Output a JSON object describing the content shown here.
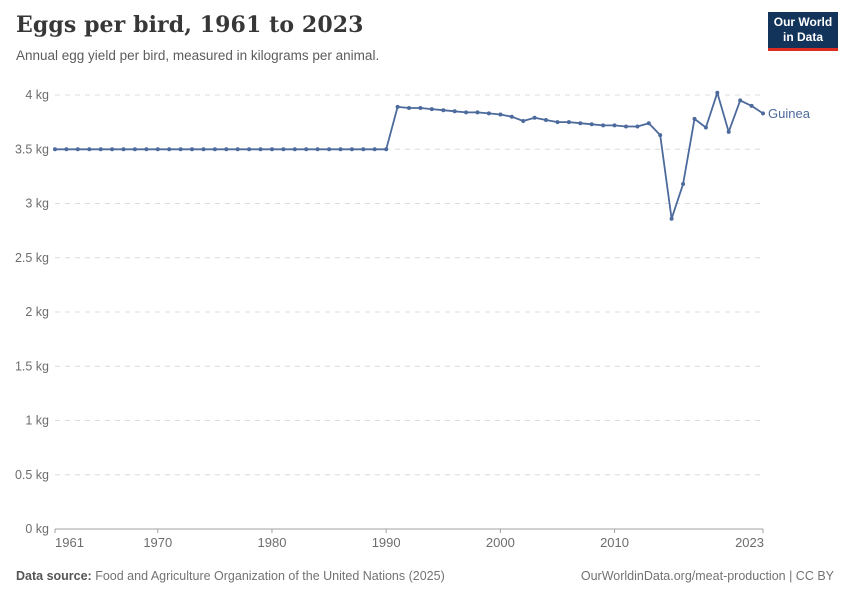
{
  "header": {
    "title": "Eggs per bird, 1961 to 2023",
    "subtitle": "Annual egg yield per bird, measured in kilograms per animal."
  },
  "logo": {
    "line1": "Our World",
    "line2": "in Data",
    "bg_color": "#12335a",
    "accent_color": "#da2d20"
  },
  "chart_data": {
    "type": "line",
    "title": "Eggs per bird, 1961 to 2023",
    "ylabel": "kilograms per animal",
    "unit": "kg",
    "ylim": [
      0,
      4
    ],
    "xlim": [
      1961,
      2023
    ],
    "grid": true,
    "legend_position": "end-of-line",
    "entity_label": "Guinea",
    "line_color": "#4c6a9c",
    "grid_color": "#dcdcdc",
    "axis_color": "#a0a0a0",
    "tick_text_color": "#6d6d6d",
    "yticks": [
      {
        "value": 0,
        "label": "0 kg"
      },
      {
        "value": 0.5,
        "label": "0.5 kg"
      },
      {
        "value": 1,
        "label": "1 kg"
      },
      {
        "value": 1.5,
        "label": "1.5 kg"
      },
      {
        "value": 2,
        "label": "2 kg"
      },
      {
        "value": 2.5,
        "label": "2.5 kg"
      },
      {
        "value": 3,
        "label": "3 kg"
      },
      {
        "value": 3.5,
        "label": "3.5 kg"
      },
      {
        "value": 4,
        "label": "4 kg"
      }
    ],
    "xticks": [
      {
        "year": 1961,
        "label": "1961",
        "align": "start"
      },
      {
        "year": 1970,
        "label": "1970",
        "align": "middle"
      },
      {
        "year": 1980,
        "label": "1980",
        "align": "middle"
      },
      {
        "year": 1990,
        "label": "1990",
        "align": "middle"
      },
      {
        "year": 2000,
        "label": "2000",
        "align": "middle"
      },
      {
        "year": 2010,
        "label": "2010",
        "align": "middle"
      },
      {
        "year": 2023,
        "label": "2023",
        "align": "end"
      }
    ],
    "series": [
      {
        "name": "Guinea",
        "x": [
          1961,
          1962,
          1963,
          1964,
          1965,
          1966,
          1967,
          1968,
          1969,
          1970,
          1971,
          1972,
          1973,
          1974,
          1975,
          1976,
          1977,
          1978,
          1979,
          1980,
          1981,
          1982,
          1983,
          1984,
          1985,
          1986,
          1987,
          1988,
          1989,
          1990,
          1991,
          1992,
          1993,
          1994,
          1995,
          1996,
          1997,
          1998,
          1999,
          2000,
          2001,
          2002,
          2003,
          2004,
          2005,
          2006,
          2007,
          2008,
          2009,
          2010,
          2011,
          2012,
          2013,
          2014,
          2015,
          2016,
          2017,
          2018,
          2019,
          2020,
          2021,
          2022,
          2023
        ],
        "values": [
          3.5,
          3.5,
          3.5,
          3.5,
          3.5,
          3.5,
          3.5,
          3.5,
          3.5,
          3.5,
          3.5,
          3.5,
          3.5,
          3.5,
          3.5,
          3.5,
          3.5,
          3.5,
          3.5,
          3.5,
          3.5,
          3.5,
          3.5,
          3.5,
          3.5,
          3.5,
          3.5,
          3.5,
          3.5,
          3.5,
          3.89,
          3.88,
          3.88,
          3.87,
          3.86,
          3.85,
          3.84,
          3.84,
          3.83,
          3.82,
          3.8,
          3.76,
          3.79,
          3.77,
          3.75,
          3.75,
          3.74,
          3.73,
          3.72,
          3.72,
          3.71,
          3.71,
          3.74,
          3.63,
          2.86,
          3.18,
          3.78,
          3.7,
          4.02,
          3.66,
          3.95,
          3.9,
          3.83
        ]
      }
    ]
  },
  "footer": {
    "source_label": "Data source:",
    "source": "Food and Agriculture Organization of the United Nations (2025)",
    "attribution": "OurWorldinData.org/meat-production | CC BY"
  }
}
